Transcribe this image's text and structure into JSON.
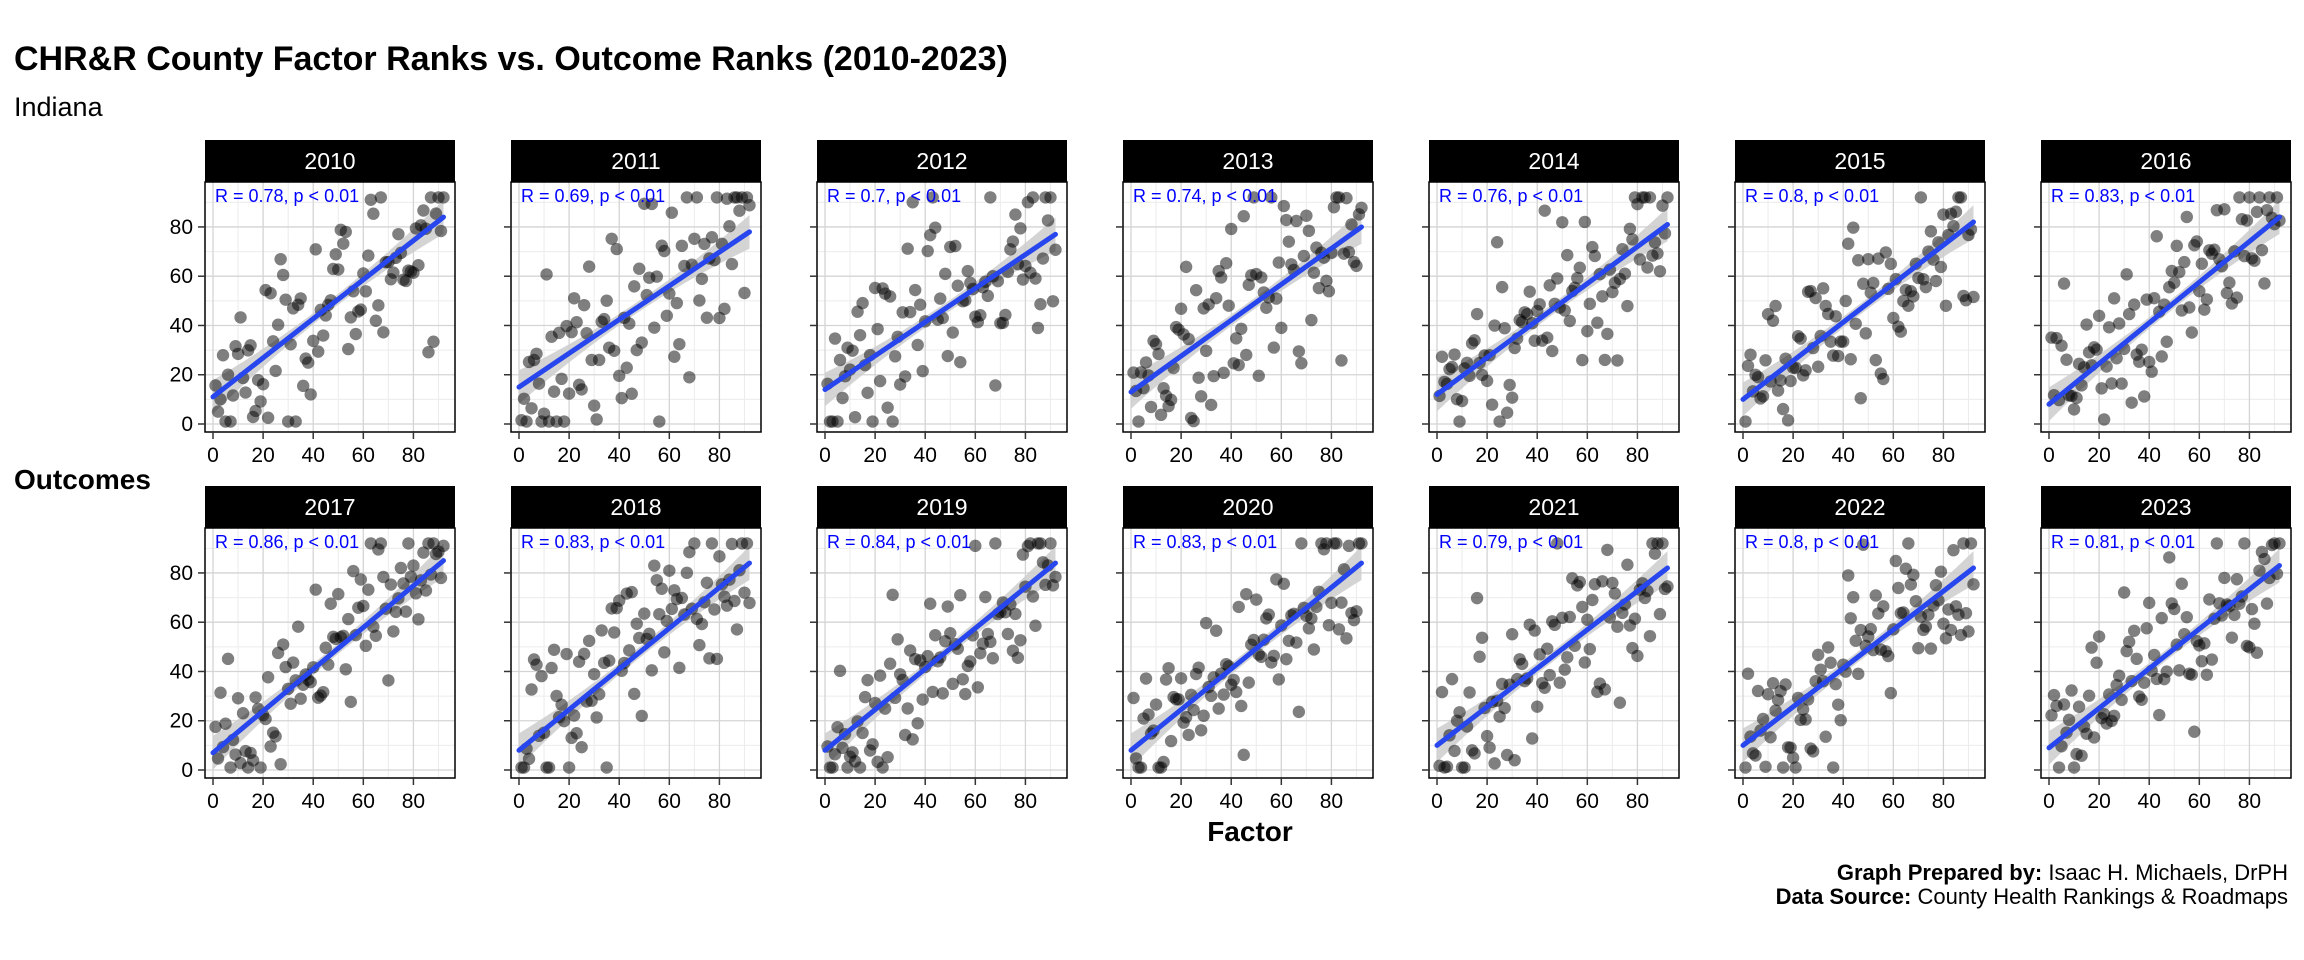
{
  "title": "CHR&R County Factor Ranks vs. Outcome Ranks (2010-2023)",
  "subtitle": "Indiana",
  "y_axis_label": "Outcomes",
  "x_axis_label": "Factor",
  "caption": {
    "prepared_label": "Graph Prepared by:",
    "prepared_value": "Isaac H. Michaels, DrPH",
    "source_label": "Data Source:",
    "source_value": "County Health Rankings & Roadmaps"
  },
  "chart_data": {
    "type": "scatter",
    "facet_by": "year",
    "facet_rows": 2,
    "facet_cols": 7,
    "xlim": [
      0,
      95
    ],
    "ylim": [
      0,
      95
    ],
    "x_ticks": [
      0,
      20,
      40,
      60,
      80
    ],
    "y_ticks": [
      0,
      20,
      40,
      60,
      80
    ],
    "grid": true,
    "point_color": "#000000",
    "point_opacity": 0.5,
    "fit_line_color": "#2846ee",
    "confidence_band_color": "#cccccc",
    "annotation_color": "#0000ff",
    "n_points_per_panel": 92,
    "panels": [
      {
        "year": "2010",
        "annotation": "R = 0.78, p < 0.01",
        "r": 0.78,
        "fit": {
          "x": [
            0,
            92
          ],
          "y": [
            11,
            84
          ]
        }
      },
      {
        "year": "2011",
        "annotation": "R = 0.69, p < 0.01",
        "r": 0.69,
        "fit": {
          "x": [
            0,
            92
          ],
          "y": [
            15,
            78
          ]
        }
      },
      {
        "year": "2012",
        "annotation": "R = 0.7, p < 0.01",
        "r": 0.7,
        "fit": {
          "x": [
            0,
            92
          ],
          "y": [
            14,
            77
          ]
        }
      },
      {
        "year": "2013",
        "annotation": "R = 0.74, p < 0.01",
        "r": 0.74,
        "fit": {
          "x": [
            0,
            92
          ],
          "y": [
            13,
            80
          ]
        }
      },
      {
        "year": "2014",
        "annotation": "R = 0.76, p < 0.01",
        "r": 0.76,
        "fit": {
          "x": [
            0,
            92
          ],
          "y": [
            12,
            81
          ]
        }
      },
      {
        "year": "2015",
        "annotation": "R = 0.8, p < 0.01",
        "r": 0.8,
        "fit": {
          "x": [
            0,
            92
          ],
          "y": [
            10,
            82
          ]
        }
      },
      {
        "year": "2016",
        "annotation": "R = 0.83, p < 0.01",
        "r": 0.83,
        "fit": {
          "x": [
            0,
            92
          ],
          "y": [
            8,
            84
          ]
        }
      },
      {
        "year": "2017",
        "annotation": "R = 0.86, p < 0.01",
        "r": 0.86,
        "fit": {
          "x": [
            0,
            92
          ],
          "y": [
            7,
            85
          ]
        }
      },
      {
        "year": "2018",
        "annotation": "R = 0.83, p < 0.01",
        "r": 0.83,
        "fit": {
          "x": [
            0,
            92
          ],
          "y": [
            8,
            84
          ]
        }
      },
      {
        "year": "2019",
        "annotation": "R = 0.84, p < 0.01",
        "r": 0.84,
        "fit": {
          "x": [
            0,
            92
          ],
          "y": [
            8,
            84
          ]
        }
      },
      {
        "year": "2020",
        "annotation": "R = 0.83, p < 0.01",
        "r": 0.83,
        "fit": {
          "x": [
            0,
            92
          ],
          "y": [
            8,
            84
          ]
        }
      },
      {
        "year": "2021",
        "annotation": "R = 0.79, p < 0.01",
        "r": 0.79,
        "fit": {
          "x": [
            0,
            92
          ],
          "y": [
            10,
            82
          ]
        }
      },
      {
        "year": "2022",
        "annotation": "R = 0.8, p < 0.01",
        "r": 0.8,
        "fit": {
          "x": [
            0,
            92
          ],
          "y": [
            10,
            82
          ]
        }
      },
      {
        "year": "2023",
        "annotation": "R = 0.81, p < 0.01",
        "r": 0.81,
        "fit": {
          "x": [
            0,
            92
          ],
          "y": [
            9,
            83
          ]
        }
      }
    ]
  }
}
